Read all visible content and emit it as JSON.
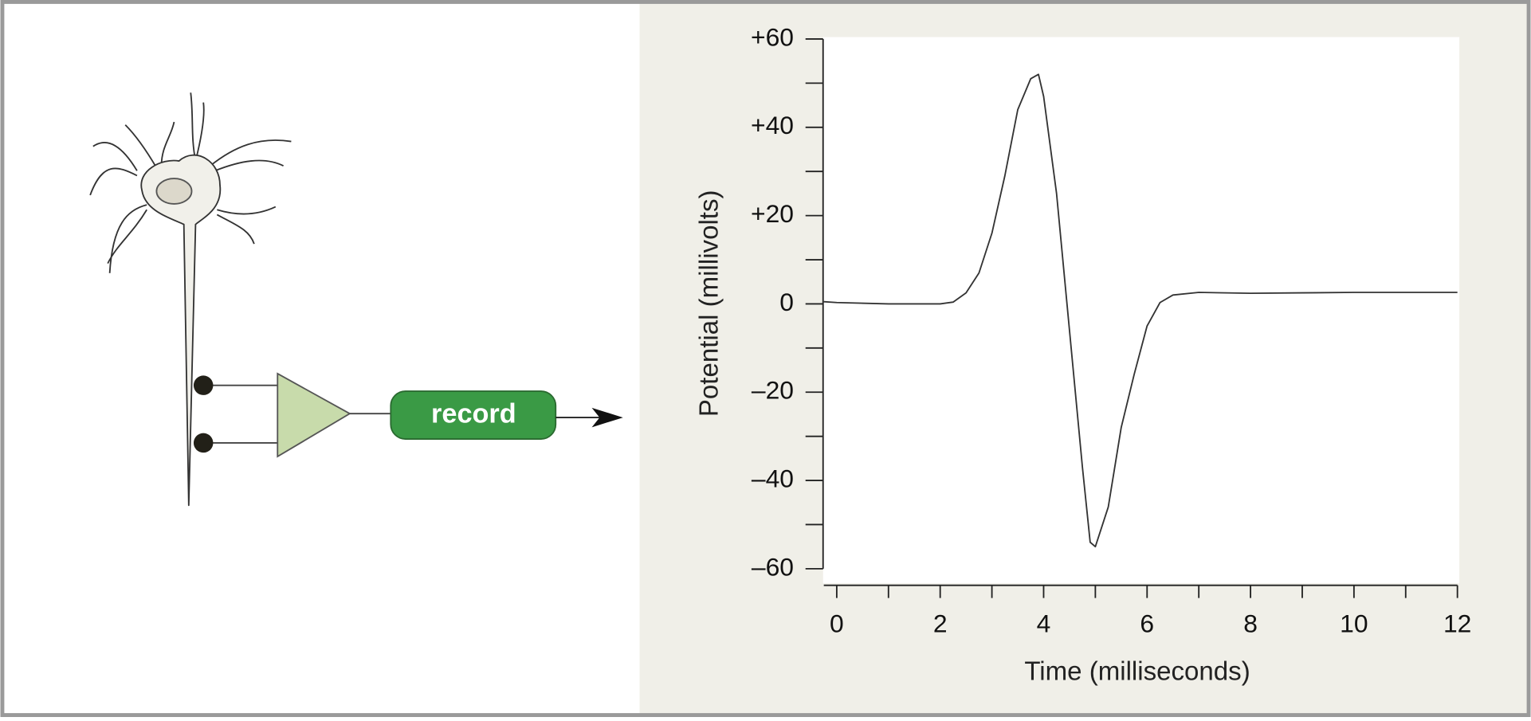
{
  "diagram": {
    "button_label": "record"
  },
  "chart_data": {
    "type": "line",
    "ylabel": "Potential (millivolts)",
    "xlabel": "Time (milliseconds)",
    "color": "#333333",
    "xlim": [
      -0.25,
      12
    ],
    "ylim": [
      -60,
      60
    ],
    "xticks": [
      0,
      2,
      4,
      6,
      8,
      10,
      12
    ],
    "xminorticks": [
      1,
      3,
      5,
      7,
      9,
      11
    ],
    "yticks": [
      {
        "value": 60,
        "label": "+60"
      },
      {
        "value": 40,
        "label": "+40"
      },
      {
        "value": 20,
        "label": "+20"
      },
      0,
      {
        "value": -20,
        "label": "–20"
      },
      {
        "value": -40,
        "label": "–40"
      },
      {
        "value": -60,
        "label": "–60"
      }
    ],
    "yminorticks": [
      50,
      30,
      10,
      -10,
      -30,
      -50
    ],
    "x": [
      -0.25,
      0,
      1,
      2,
      2.25,
      2.5,
      2.75,
      3,
      3.25,
      3.5,
      3.75,
      3.9,
      4,
      4.25,
      4.5,
      4.75,
      4.9,
      5,
      5.25,
      5.5,
      5.75,
      6,
      6.25,
      6.5,
      7,
      8,
      9,
      10,
      11,
      12
    ],
    "values": [
      0.5,
      0.3,
      0,
      0,
      0.4,
      2.5,
      7,
      16,
      29,
      44,
      51,
      52,
      47,
      25,
      -6,
      -37,
      -54,
      -55,
      -46,
      -28,
      -16,
      -5,
      0.3,
      2,
      2.6,
      2.4,
      2.5,
      2.6,
      2.6,
      2.6
    ]
  }
}
